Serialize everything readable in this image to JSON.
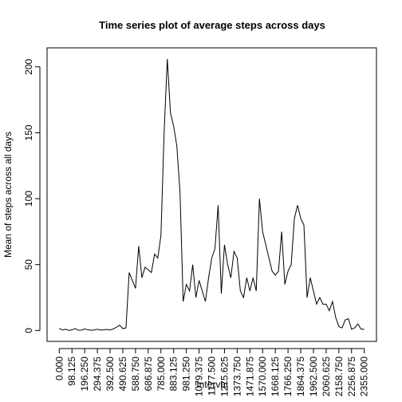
{
  "chart_data": {
    "type": "line",
    "title": "Time series plot of average steps across days",
    "xlabel": "Interval",
    "ylabel": "Mean of steps across all days",
    "color": "#000000",
    "x": [
      0,
      24.53125,
      49.0625,
      73.59375,
      98.125,
      122.65625,
      147.1875,
      171.71875,
      196.25,
      220.78125,
      245.3125,
      269.84375,
      294.375,
      318.90625,
      343.4375,
      367.96875,
      392.5,
      417.03125,
      441.5625,
      466.09375,
      490.625,
      515.15625,
      539.6875,
      564.21875,
      588.75,
      613.28125,
      637.8125,
      662.34375,
      686.875,
      711.40625,
      735.9375,
      760.46875,
      785,
      809.53125,
      834.0625,
      858.59375,
      883.125,
      907.65625,
      932.1875,
      956.71875,
      981.25,
      1005.78125,
      1030.3125,
      1054.84375,
      1079.375,
      1103.90625,
      1128.4375,
      1152.96875,
      1177.5,
      1202.03125,
      1226.5625,
      1251.09375,
      1275.625,
      1300.15625,
      1324.6875,
      1349.21875,
      1373.75,
      1398.28125,
      1422.8125,
      1447.34375,
      1471.875,
      1496.40625,
      1520.9375,
      1545.46875,
      1570,
      1594.53125,
      1619.0625,
      1643.59375,
      1668.125,
      1692.65625,
      1717.1875,
      1741.71875,
      1766.25,
      1790.78125,
      1815.3125,
      1839.84375,
      1864.375,
      1888.90625,
      1913.4375,
      1937.96875,
      1962.5,
      1987.03125,
      2011.5625,
      2036.09375,
      2060.625,
      2085.15625,
      2109.6875,
      2134.21875,
      2158.75,
      2183.28125,
      2207.8125,
      2232.34375,
      2256.875,
      2281.40625,
      2305.9375,
      2330.46875,
      2355
    ],
    "values": [
      1.7,
      0.3,
      1,
      0.1,
      0.5,
      1.5,
      0.2,
      0.3,
      1.2,
      0.5,
      0.2,
      0.4,
      1,
      0.3,
      0.5,
      0.8,
      0.4,
      1.2,
      2.5,
      4,
      1.5,
      2,
      44,
      38,
      32,
      64,
      40,
      48,
      46,
      44,
      58,
      55,
      72,
      150,
      206,
      165,
      155,
      140,
      105,
      22,
      35,
      30,
      50,
      25,
      38,
      30,
      22,
      40,
      55,
      62,
      95,
      28,
      65,
      50,
      40,
      60,
      55,
      30,
      25,
      40,
      30,
      40,
      30,
      100,
      75,
      65,
      55,
      45,
      42,
      45,
      75,
      35,
      45,
      50,
      85,
      95,
      85,
      80,
      25,
      40,
      30,
      20,
      25,
      20,
      20,
      15,
      22,
      10,
      3,
      2,
      8,
      9,
      1,
      2,
      5,
      1,
      1
    ],
    "xlim": [
      -94.2,
      2449.2
    ],
    "ylim": [
      -8.24,
      214.4
    ],
    "xticks": [
      {
        "value": 0,
        "label": "0.000"
      },
      {
        "value": 98.125,
        "label": "98.125"
      },
      {
        "value": 196.25,
        "label": "196.250"
      },
      {
        "value": 294.375,
        "label": "294.375"
      },
      {
        "value": 392.5,
        "label": "392.500"
      },
      {
        "value": 490.625,
        "label": "490.625"
      },
      {
        "value": 588.75,
        "label": "588.750"
      },
      {
        "value": 686.875,
        "label": "686.875"
      },
      {
        "value": 785,
        "label": "785.000"
      },
      {
        "value": 883.125,
        "label": "883.125"
      },
      {
        "value": 981.25,
        "label": "981.250"
      },
      {
        "value": 1079.375,
        "label": "1079.375"
      },
      {
        "value": 1177.5,
        "label": "1177.500"
      },
      {
        "value": 1275.625,
        "label": "1275.625"
      },
      {
        "value": 1373.75,
        "label": "1373.750"
      },
      {
        "value": 1471.875,
        "label": "1471.875"
      },
      {
        "value": 1570,
        "label": "1570.000"
      },
      {
        "value": 1668.125,
        "label": "1668.125"
      },
      {
        "value": 1766.25,
        "label": "1766.250"
      },
      {
        "value": 1864.375,
        "label": "1864.375"
      },
      {
        "value": 1962.5,
        "label": "1962.500"
      },
      {
        "value": 2060.625,
        "label": "2060.625"
      },
      {
        "value": 2158.75,
        "label": "2158.750"
      },
      {
        "value": 2256.875,
        "label": "2256.875"
      },
      {
        "value": 2355,
        "label": "2355.000"
      }
    ],
    "yticks": [
      0,
      50,
      100,
      150,
      200
    ]
  }
}
